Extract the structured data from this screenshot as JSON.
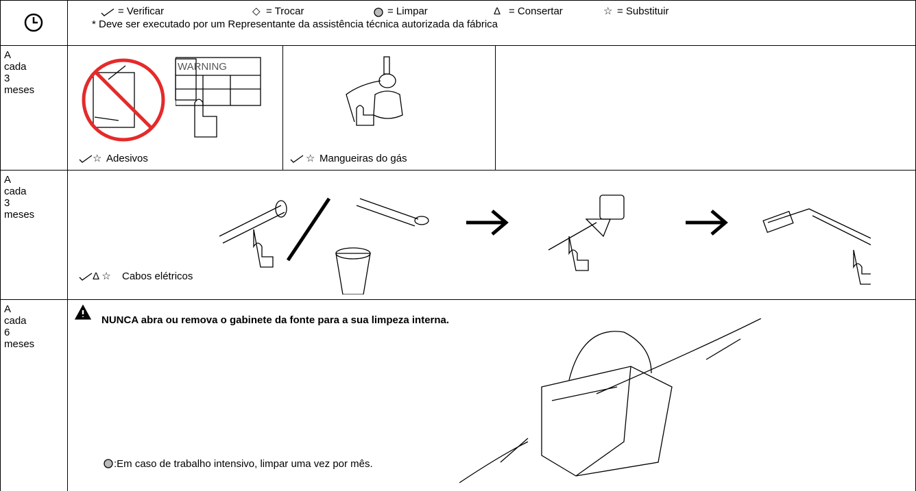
{
  "legend": [
    {
      "label": "= Verificar"
    },
    {
      "symbol": "◇",
      "label": "= Trocar"
    },
    {
      "label": "= Limpar"
    },
    {
      "symbol": "Δ",
      "label": "= Consertar"
    },
    {
      "symbol": "☆",
      "label": "= Substituir"
    }
  ],
  "note": "* Deve ser executado por um Representante da assistência técnica autorizada da fábrica",
  "rows": [
    {
      "interval": "A cada 3 meses",
      "items": [
        {
          "symbols": "☆",
          "label": "Adesivos",
          "sign": "WARNING"
        },
        {
          "symbols": "☆",
          "label": "Mangueiras do gás"
        }
      ]
    },
    {
      "interval": "A cada 3 meses",
      "items": [
        {
          "symbols": "Δ ☆",
          "label": "Cabos elétricos"
        }
      ]
    },
    {
      "interval": "A cada 6 meses",
      "warning": "NUNCA abra ou remova o gabinete da fonte para a sua limpeza interna.",
      "clean_note": ":Em caso de trabalho intensivo, limpar uma vez por mês."
    }
  ]
}
